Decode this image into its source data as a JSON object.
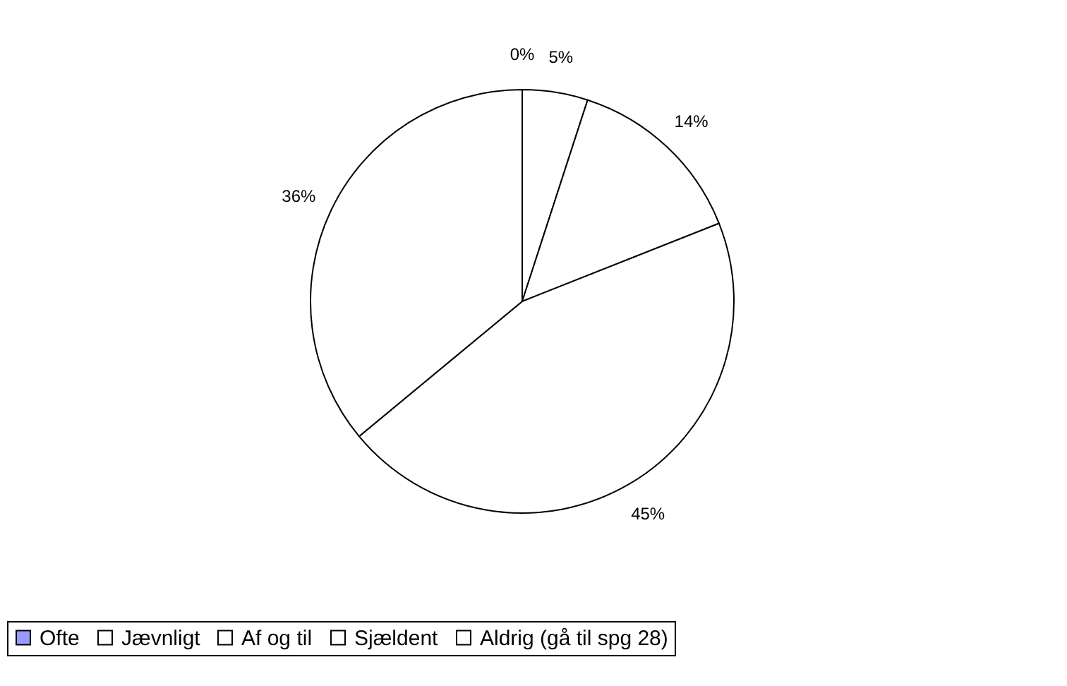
{
  "chart_data": {
    "type": "pie",
    "categories": [
      "Ofte",
      "Jævnligt",
      "Af og til",
      "Sjældent",
      "Aldrig (gå til spg 28)"
    ],
    "values": [
      0,
      5,
      14,
      45,
      36
    ],
    "colors": [
      "#9999ff",
      "#ffffff",
      "#ffffff",
      "#ffffff",
      "#ffffff"
    ],
    "value_labels": [
      "0%",
      "5%",
      "14%",
      "45%",
      "36%"
    ],
    "legend": "bottom"
  }
}
